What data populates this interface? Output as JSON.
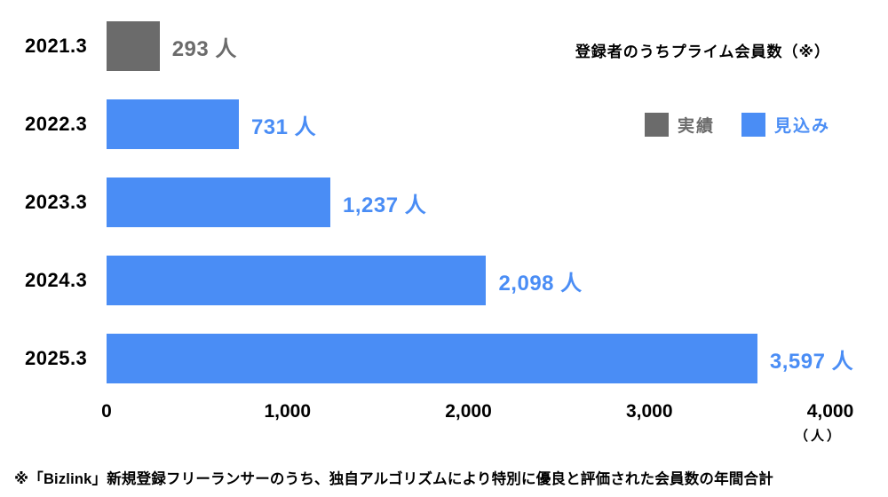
{
  "chart_data": {
    "type": "bar",
    "orientation": "horizontal",
    "title": "登録者のうちプライム会員数（※）",
    "categories": [
      "2021.3",
      "2022.3",
      "2023.3",
      "2024.3",
      "2025.3"
    ],
    "values": [
      293,
      731,
      1237,
      2098,
      3597
    ],
    "value_labels": [
      "293 人",
      "731 人",
      "1,237 人",
      "2,098 人",
      "3,597 人"
    ],
    "series_by_bar": [
      "actual",
      "forecast",
      "forecast",
      "forecast",
      "forecast"
    ],
    "xlim": [
      0,
      4000
    ],
    "x_ticks": [
      "0",
      "1,000",
      "2,000",
      "3,000",
      "4,000"
    ],
    "x_unit": "（人）",
    "grid": false,
    "legend_position": "top-right",
    "legend": [
      {
        "key": "actual",
        "label": "実績",
        "color": "#6b6b6b"
      },
      {
        "key": "forecast",
        "label": "見込み",
        "color": "#4a8df5"
      }
    ],
    "colors": {
      "actual": "#6b6b6b",
      "forecast": "#4a8df5",
      "text": "#000000",
      "background": "#ffffff"
    }
  },
  "footnote": "※「Bizlink」新規登録フリーランサーのうち、独自アルゴリズムにより特別に優良と評価された会員数の年間合計"
}
